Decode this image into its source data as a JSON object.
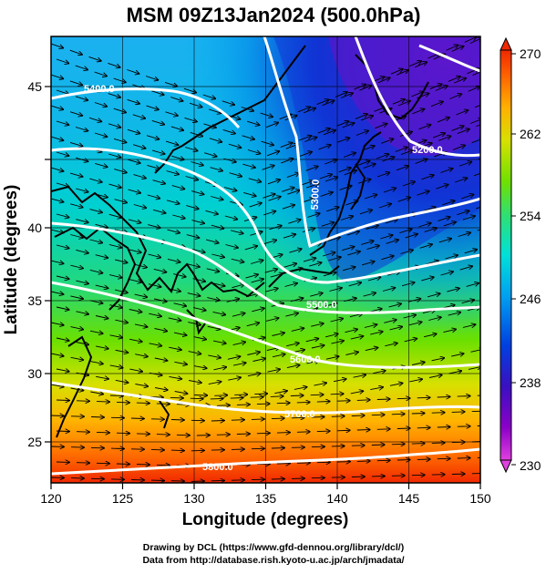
{
  "title": "MSM 09Z13Jan2024 (500.0hPa)",
  "x_axis": {
    "label": "Longitude (degrees)",
    "range": [
      120,
      150
    ],
    "ticks": [
      "120",
      "125",
      "130",
      "135",
      "140",
      "145",
      "150"
    ]
  },
  "y_axis": {
    "label": "Latitude  (degrees)",
    "range": [
      22.5,
      48
    ],
    "ticks": [
      "25",
      "30",
      "35",
      "40",
      "45"
    ]
  },
  "colorbar": {
    "range": [
      230,
      270
    ],
    "ticks": [
      "230",
      "238",
      "246",
      "254",
      "262",
      "270"
    ],
    "colors": [
      "#e040e0",
      "#8a00c8",
      "#3a10c0",
      "#0040e0",
      "#00a0f0",
      "#00e0d8",
      "#30e070",
      "#70e000",
      "#d8e000",
      "#ffb000",
      "#ff6000",
      "#f02800"
    ]
  },
  "contour_labels": [
    {
      "text": "5400.0",
      "note": "upper left"
    },
    {
      "text": "5200.0",
      "note": "upper right"
    },
    {
      "text": "5300.0",
      "note": "center trough"
    },
    {
      "text": "5500.0",
      "note": "center"
    },
    {
      "text": "5600.0",
      "note": "center-right"
    },
    {
      "text": "5700.0",
      "note": "lower center"
    },
    {
      "text": "5800.0",
      "note": "bottom"
    }
  ],
  "credits": {
    "line1": "Drawing by DCL (https://www.gfd-dennou.org/library/dcl/)",
    "line2": "Data from http://database.rish.kyoto-u.ac.jp/arch/jmadata/"
  }
}
